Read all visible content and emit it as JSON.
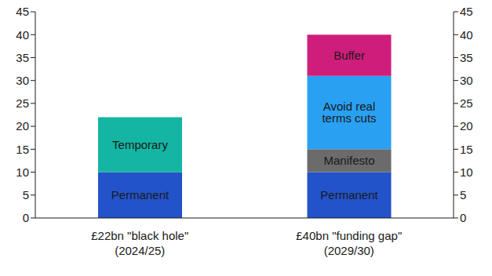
{
  "chart_data": {
    "type": "bar",
    "stacked": true,
    "grid": false,
    "categories": [
      "£22bn \"black hole\"\n(2024/25)",
      "£40bn \"funding gap\"\n(2029/30)"
    ],
    "series": [
      {
        "name": "Permanent",
        "color": "#2353c9",
        "values": [
          10,
          10
        ]
      },
      {
        "name": "Temporary",
        "color": "#14b5a2",
        "values": [
          12,
          null
        ]
      },
      {
        "name": "Manifesto",
        "color": "#6b6b6b",
        "values": [
          null,
          5
        ]
      },
      {
        "name": "Avoid real terms cuts",
        "color": "#2aa0f2",
        "values": [
          null,
          16
        ]
      },
      {
        "name": "Buffer",
        "color": "#cf1d7c",
        "values": [
          null,
          9
        ]
      }
    ],
    "ylim": [
      0,
      45
    ],
    "yticks": [
      0,
      5,
      10,
      15,
      20,
      25,
      30,
      35,
      40,
      45
    ],
    "y2lim": [
      0,
      45
    ],
    "y2ticks": [
      0,
      5,
      10,
      15,
      20,
      25,
      30,
      35,
      40,
      45
    ]
  }
}
